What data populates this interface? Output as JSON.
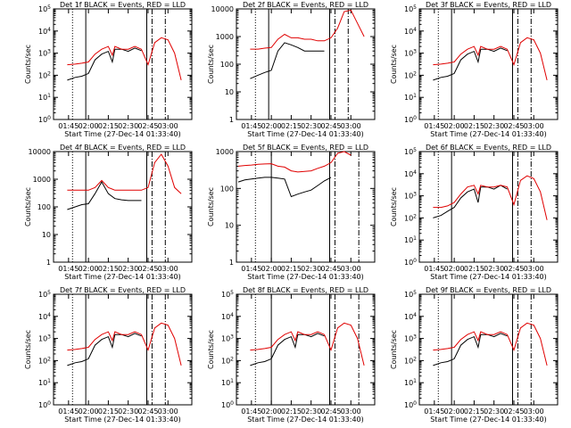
{
  "figure": {
    "xlabel": "Start Time (27-Dec-14 01:33:40)",
    "ylabel": "Counts/sec",
    "x_tick_labels": [
      "01:45",
      "02:00",
      "02:15",
      "02:30",
      "02:45",
      "03:00"
    ],
    "colors": {
      "events": "#000000",
      "lld": "#e00000"
    }
  },
  "chart_data": [
    {
      "type": "line",
      "title": "Det 1f BLACK = Events, RED = LLD",
      "xlim": [
        "01:33:40",
        "03:18:00"
      ],
      "ylog": true,
      "ylim": [
        1,
        100000
      ],
      "y_tick_labels": [
        "10^0",
        "10^1",
        "10^2",
        "10^3",
        "10^4",
        "10^5"
      ],
      "vlines": {
        "dotted": [
          "01:48"
        ],
        "solid": [
          "01:58",
          "02:44"
        ],
        "dashdot": [
          "02:48",
          "02:58"
        ]
      },
      "x": [
        "01:44",
        "01:50",
        "01:55",
        "02:00",
        "02:05",
        "02:10",
        "02:15",
        "02:18",
        "02:20",
        "02:25",
        "02:30",
        "02:35",
        "02:40",
        "02:45",
        "02:50",
        "02:55",
        "03:00",
        "03:05",
        "03:10"
      ],
      "series": [
        {
          "name": "Events",
          "values": [
            60,
            80,
            90,
            120,
            500,
            900,
            1200,
            400,
            1500,
            1500,
            1200,
            1700,
            1300,
            null,
            null,
            null,
            null,
            null,
            null
          ]
        },
        {
          "name": "LLD",
          "values": [
            300,
            320,
            350,
            400,
            900,
            1500,
            2000,
            800,
            2000,
            1500,
            1500,
            2000,
            1500,
            300,
            3000,
            5000,
            4000,
            1000,
            60
          ]
        }
      ]
    },
    {
      "type": "line",
      "title": "Det 2f BLACK = Events, RED = LLD",
      "xlim": [
        "01:33:40",
        "03:18:00"
      ],
      "ylog": true,
      "ylim": [
        1,
        10000
      ],
      "y_tick_labels": [
        "1",
        "10",
        "100",
        "1000",
        "10000"
      ],
      "vlines": {
        "dotted": [
          "01:48"
        ],
        "solid": [
          "01:58",
          "02:44"
        ],
        "dashdot": [
          "02:48",
          "02:58"
        ]
      },
      "x": [
        "01:44",
        "01:50",
        "01:55",
        "02:00",
        "02:05",
        "02:10",
        "02:15",
        "02:20",
        "02:25",
        "02:30",
        "02:35",
        "02:40",
        "02:45",
        "02:50",
        "02:55",
        "03:00",
        "03:05",
        "03:10"
      ],
      "series": [
        {
          "name": "Events",
          "values": [
            30,
            40,
            50,
            60,
            300,
            600,
            500,
            400,
            300,
            300,
            300,
            300,
            null,
            null,
            null,
            null,
            null,
            null
          ]
        },
        {
          "name": "LLD",
          "values": [
            350,
            350,
            380,
            400,
            800,
            1200,
            900,
            900,
            800,
            800,
            700,
            700,
            900,
            2000,
            8000,
            9000,
            3000,
            1000
          ]
        }
      ]
    },
    {
      "type": "line",
      "title": "Det 3f BLACK = Events, RED = LLD",
      "xlim": [
        "01:33:40",
        "03:18:00"
      ],
      "ylog": true,
      "ylim": [
        1,
        100000
      ],
      "y_tick_labels": [
        "10^0",
        "10^1",
        "10^2",
        "10^3",
        "10^4",
        "10^5"
      ],
      "vlines": {
        "dotted": [
          "01:48"
        ],
        "solid": [
          "01:58",
          "02:44"
        ],
        "dashdot": [
          "02:48",
          "02:58"
        ]
      },
      "x": [
        "01:44",
        "01:50",
        "01:55",
        "02:00",
        "02:05",
        "02:10",
        "02:15",
        "02:18",
        "02:20",
        "02:25",
        "02:30",
        "02:35",
        "02:40",
        "02:45",
        "02:50",
        "02:55",
        "03:00",
        "03:05",
        "03:10"
      ],
      "series": [
        {
          "name": "Events",
          "values": [
            60,
            80,
            90,
            120,
            500,
            900,
            1200,
            400,
            1500,
            1500,
            1200,
            1700,
            1300,
            null,
            null,
            null,
            null,
            null,
            null
          ]
        },
        {
          "name": "LLD",
          "values": [
            300,
            320,
            350,
            400,
            900,
            1500,
            2000,
            800,
            2000,
            1500,
            1500,
            2000,
            1500,
            300,
            3000,
            5000,
            4000,
            1000,
            60
          ]
        }
      ]
    },
    {
      "type": "line",
      "title": "Det 4f BLACK = Events, RED = LLD",
      "xlim": [
        "01:33:40",
        "03:18:00"
      ],
      "ylog": true,
      "ylim": [
        1,
        10000
      ],
      "y_tick_labels": [
        "1",
        "10",
        "100",
        "1000",
        "10000"
      ],
      "vlines": {
        "dotted": [
          "01:48"
        ],
        "solid": [
          "01:58",
          "02:44"
        ],
        "dashdot": [
          "02:48",
          "02:58"
        ]
      },
      "x": [
        "01:44",
        "01:50",
        "01:55",
        "02:00",
        "02:05",
        "02:10",
        "02:15",
        "02:20",
        "02:25",
        "02:30",
        "02:35",
        "02:40",
        "02:45",
        "02:50",
        "02:55",
        "03:00",
        "03:05",
        "03:10"
      ],
      "series": [
        {
          "name": "Events",
          "values": [
            80,
            100,
            120,
            130,
            300,
            800,
            300,
            200,
            180,
            170,
            170,
            170,
            null,
            null,
            null,
            null,
            null,
            null
          ]
        },
        {
          "name": "LLD",
          "values": [
            400,
            400,
            400,
            400,
            500,
            900,
            500,
            400,
            400,
            400,
            400,
            400,
            500,
            4000,
            8000,
            3000,
            500,
            300
          ]
        }
      ]
    },
    {
      "type": "line",
      "title": "Det 5f BLACK = Events, RED = LLD",
      "xlim": [
        "01:33:40",
        "03:18:00"
      ],
      "ylog": true,
      "ylim": [
        1,
        1000
      ],
      "y_tick_labels": [
        "1",
        "10",
        "100",
        "1000"
      ],
      "vlines": {
        "dotted": [
          "01:48"
        ],
        "solid": [
          "02:00",
          "02:44"
        ],
        "dashdot": [
          "02:48",
          "03:06"
        ]
      },
      "x": [
        "01:35",
        "01:40",
        "01:45",
        "01:50",
        "01:55",
        "02:00",
        "02:05",
        "02:10",
        "02:15",
        "02:20",
        "02:25",
        "02:30",
        "02:35",
        "02:40",
        "02:45",
        "02:50",
        "02:55",
        "03:00"
      ],
      "series": [
        {
          "name": "Events",
          "values": [
            150,
            170,
            180,
            190,
            200,
            200,
            190,
            180,
            60,
            70,
            80,
            90,
            120,
            160,
            200,
            null,
            null,
            null
          ]
        },
        {
          "name": "LLD",
          "values": [
            400,
            420,
            430,
            450,
            460,
            470,
            400,
            380,
            300,
            280,
            290,
            300,
            350,
            400,
            500,
            900,
            1000,
            800
          ]
        }
      ]
    },
    {
      "type": "line",
      "title": "Det 6f BLACK = Events, RED = LLD",
      "xlim": [
        "01:33:40",
        "03:18:00"
      ],
      "ylog": true,
      "ylim": [
        1,
        100000
      ],
      "y_tick_labels": [
        "10^0",
        "10^1",
        "10^2",
        "10^3",
        "10^4",
        "10^5"
      ],
      "vlines": {
        "dotted": [
          "01:48"
        ],
        "solid": [
          "01:58",
          "02:44"
        ],
        "dashdot": [
          "02:48",
          "02:58"
        ]
      },
      "x": [
        "01:44",
        "01:50",
        "01:55",
        "02:00",
        "02:05",
        "02:10",
        "02:15",
        "02:18",
        "02:20",
        "02:25",
        "02:30",
        "02:35",
        "02:40",
        "02:45",
        "02:50",
        "02:55",
        "03:00",
        "03:05",
        "03:10"
      ],
      "series": [
        {
          "name": "Events",
          "values": [
            100,
            130,
            200,
            300,
            800,
            1500,
            2000,
            500,
            2500,
            2500,
            2000,
            3000,
            2000,
            null,
            null,
            null,
            null,
            null,
            null
          ]
        },
        {
          "name": "LLD",
          "values": [
            300,
            300,
            350,
            500,
            1200,
            2500,
            3000,
            1200,
            3000,
            2500,
            2500,
            3000,
            2500,
            400,
            5000,
            8000,
            6000,
            1500,
            80
          ]
        }
      ]
    },
    {
      "type": "line",
      "title": "Det 7f BLACK = Events, RED = LLD",
      "xlim": [
        "01:33:40",
        "03:18:00"
      ],
      "ylog": true,
      "ylim": [
        1,
        100000
      ],
      "y_tick_labels": [
        "10^0",
        "10^1",
        "10^2",
        "10^3",
        "10^4",
        "10^5"
      ],
      "vlines": {
        "dotted": [
          "01:48"
        ],
        "solid": [
          "01:58",
          "02:44"
        ],
        "dashdot": [
          "02:48",
          "02:58"
        ]
      },
      "x": [
        "01:44",
        "01:50",
        "01:55",
        "02:00",
        "02:05",
        "02:10",
        "02:15",
        "02:18",
        "02:20",
        "02:25",
        "02:30",
        "02:35",
        "02:40",
        "02:45",
        "02:50",
        "02:55",
        "03:00",
        "03:05",
        "03:10"
      ],
      "series": [
        {
          "name": "Events",
          "values": [
            60,
            80,
            90,
            120,
            500,
            900,
            1200,
            400,
            1500,
            1500,
            1200,
            1700,
            1300,
            null,
            null,
            null,
            null,
            null,
            null
          ]
        },
        {
          "name": "LLD",
          "values": [
            300,
            320,
            350,
            400,
            900,
            1500,
            2000,
            800,
            2000,
            1500,
            1500,
            2000,
            1500,
            300,
            3000,
            5000,
            4000,
            1000,
            60
          ]
        }
      ]
    },
    {
      "type": "line",
      "title": "Det 8f BLACK = Events, RED = LLD",
      "xlim": [
        "01:33:40",
        "03:18:00"
      ],
      "ylog": true,
      "ylim": [
        1,
        100000
      ],
      "y_tick_labels": [
        "10^0",
        "10^1",
        "10^2",
        "10^3",
        "10^4",
        "10^5"
      ],
      "vlines": {
        "dotted": [
          "01:48"
        ],
        "solid": [
          "02:00",
          "02:44"
        ],
        "dashdot": [
          "02:48",
          "03:06"
        ]
      },
      "x": [
        "01:44",
        "01:50",
        "01:55",
        "02:00",
        "02:05",
        "02:10",
        "02:15",
        "02:18",
        "02:20",
        "02:25",
        "02:30",
        "02:35",
        "02:40",
        "02:45",
        "02:50",
        "02:55",
        "03:00",
        "03:05",
        "03:10"
      ],
      "series": [
        {
          "name": "Events",
          "values": [
            60,
            80,
            90,
            120,
            500,
            900,
            1200,
            400,
            1500,
            1500,
            1200,
            1700,
            1300,
            null,
            null,
            null,
            null,
            null,
            null
          ]
        },
        {
          "name": "LLD",
          "values": [
            300,
            320,
            350,
            400,
            900,
            1500,
            2000,
            800,
            2000,
            1500,
            1500,
            2000,
            1500,
            300,
            3000,
            5000,
            4000,
            1000,
            60
          ]
        }
      ]
    },
    {
      "type": "line",
      "title": "Det 9f BLACK = Events, RED = LLD",
      "xlim": [
        "01:33:40",
        "03:18:00"
      ],
      "ylog": true,
      "ylim": [
        1,
        100000
      ],
      "y_tick_labels": [
        "10^0",
        "10^1",
        "10^2",
        "10^3",
        "10^4",
        "10^5"
      ],
      "vlines": {
        "dotted": [
          "01:48"
        ],
        "solid": [
          "01:58",
          "02:44"
        ],
        "dashdot": [
          "02:48",
          "02:58"
        ]
      },
      "x": [
        "01:44",
        "01:50",
        "01:55",
        "02:00",
        "02:05",
        "02:10",
        "02:15",
        "02:18",
        "02:20",
        "02:25",
        "02:30",
        "02:35",
        "02:40",
        "02:45",
        "02:50",
        "02:55",
        "03:00",
        "03:05",
        "03:10"
      ],
      "series": [
        {
          "name": "Events",
          "values": [
            60,
            80,
            90,
            120,
            500,
            900,
            1200,
            400,
            1500,
            1500,
            1200,
            1700,
            1300,
            null,
            null,
            null,
            null,
            null,
            null
          ]
        },
        {
          "name": "LLD",
          "values": [
            300,
            320,
            350,
            400,
            900,
            1500,
            2000,
            800,
            2000,
            1500,
            1500,
            2000,
            1500,
            300,
            3000,
            5000,
            4000,
            1000,
            60
          ]
        }
      ]
    }
  ]
}
